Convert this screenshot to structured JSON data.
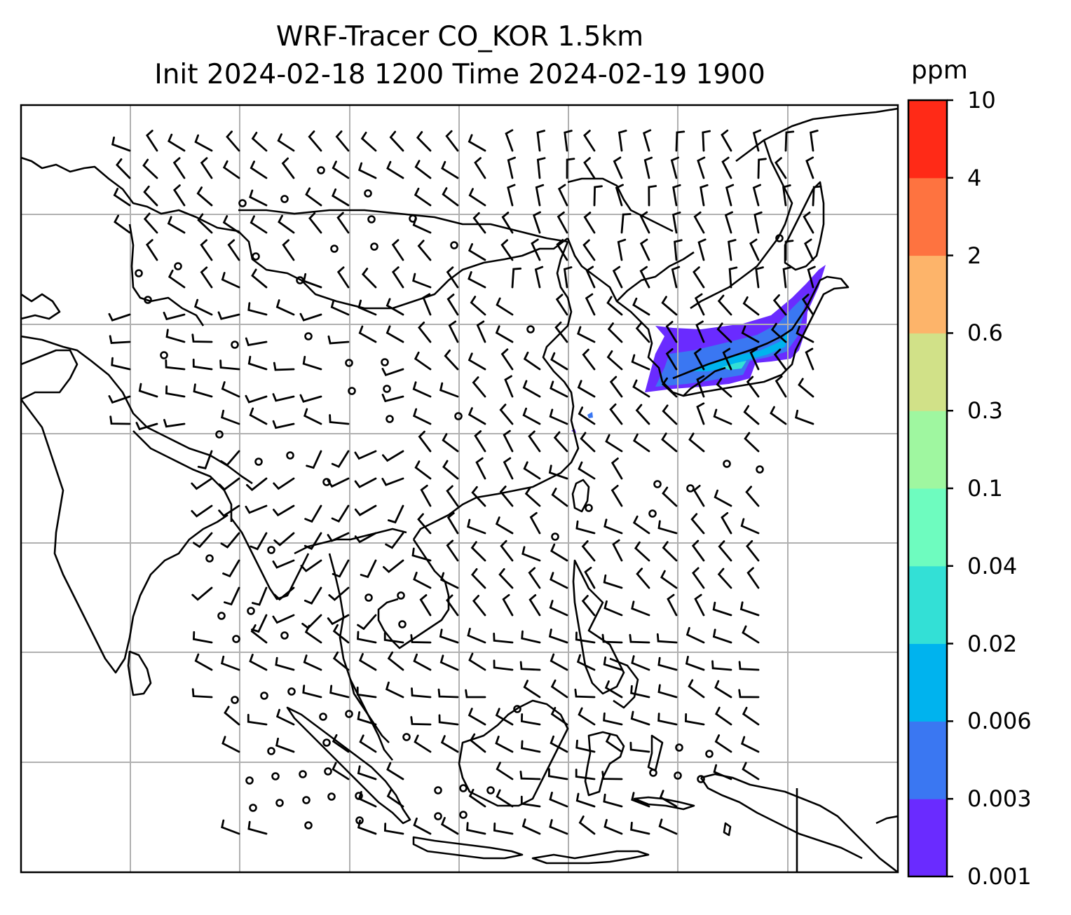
{
  "title": {
    "line1": "WRF-Tracer CO_KOR 1.5km",
    "line2": "Init 2024-02-18 1200 Time 2024-02-19 1900"
  },
  "colorbar": {
    "unit": "ppm",
    "levels": [
      "0.001",
      "0.003",
      "0.006",
      "0.02",
      "0.04",
      "0.1",
      "0.3",
      "0.6",
      "2",
      "4",
      "10"
    ],
    "colors": [
      "#6a2bff",
      "#3a77f2",
      "#00b3ee",
      "#33e0d6",
      "#6efcbf",
      "#9ff7a0",
      "#d1e188",
      "#fdb46a",
      "#fe7340",
      "#ff2a17"
    ]
  },
  "map": {
    "plume_colors": {
      "outer": "#6a2bff",
      "middle": "#3a77f2",
      "inner": "#00b3ee",
      "core": "#33e0d6"
    },
    "gridline_color": "#b0b0b0",
    "coastline_color": "#000000"
  }
}
